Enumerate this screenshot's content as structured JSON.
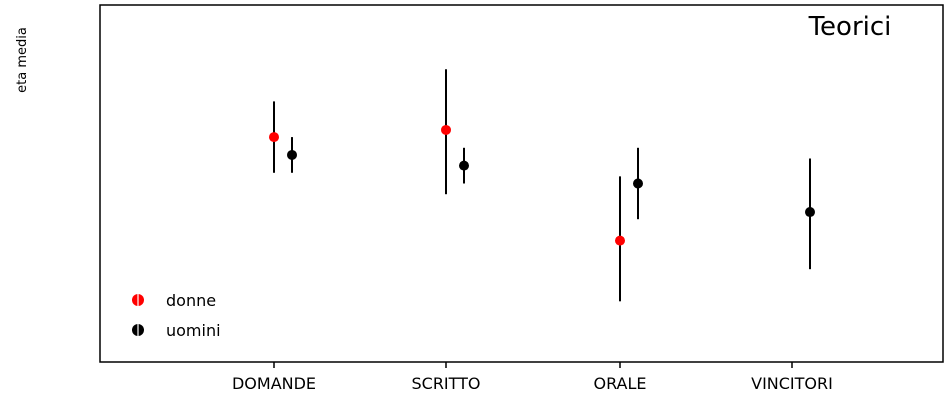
{
  "chart_data": {
    "type": "scatter",
    "title": "Teorici",
    "ylabel": "eta media",
    "xlabel": "",
    "categories": [
      "DOMANDE",
      "SCRITTO",
      "ORALE",
      "VINCITORI"
    ],
    "ylim": [
      0,
      100
    ],
    "yticks_shown": false,
    "legend_position": "bottom-left",
    "series": [
      {
        "name": "donne",
        "color": "#ff0000",
        "marker": "circle",
        "points": [
          {
            "category": "DOMANDE",
            "y": 63,
            "low": 53,
            "high": 73
          },
          {
            "category": "SCRITTO",
            "y": 65,
            "low": 47,
            "high": 82
          },
          {
            "category": "ORALE",
            "y": 34,
            "low": 17,
            "high": 52
          }
        ]
      },
      {
        "name": "uomini",
        "color": "#000000",
        "marker": "circle",
        "points": [
          {
            "category": "DOMANDE",
            "y": 58,
            "low": 53,
            "high": 63
          },
          {
            "category": "SCRITTO",
            "y": 55,
            "low": 50,
            "high": 60
          },
          {
            "category": "ORALE",
            "y": 50,
            "low": 40,
            "high": 60
          },
          {
            "category": "VINCITORI",
            "y": 42,
            "low": 26,
            "high": 57
          }
        ]
      }
    ]
  }
}
